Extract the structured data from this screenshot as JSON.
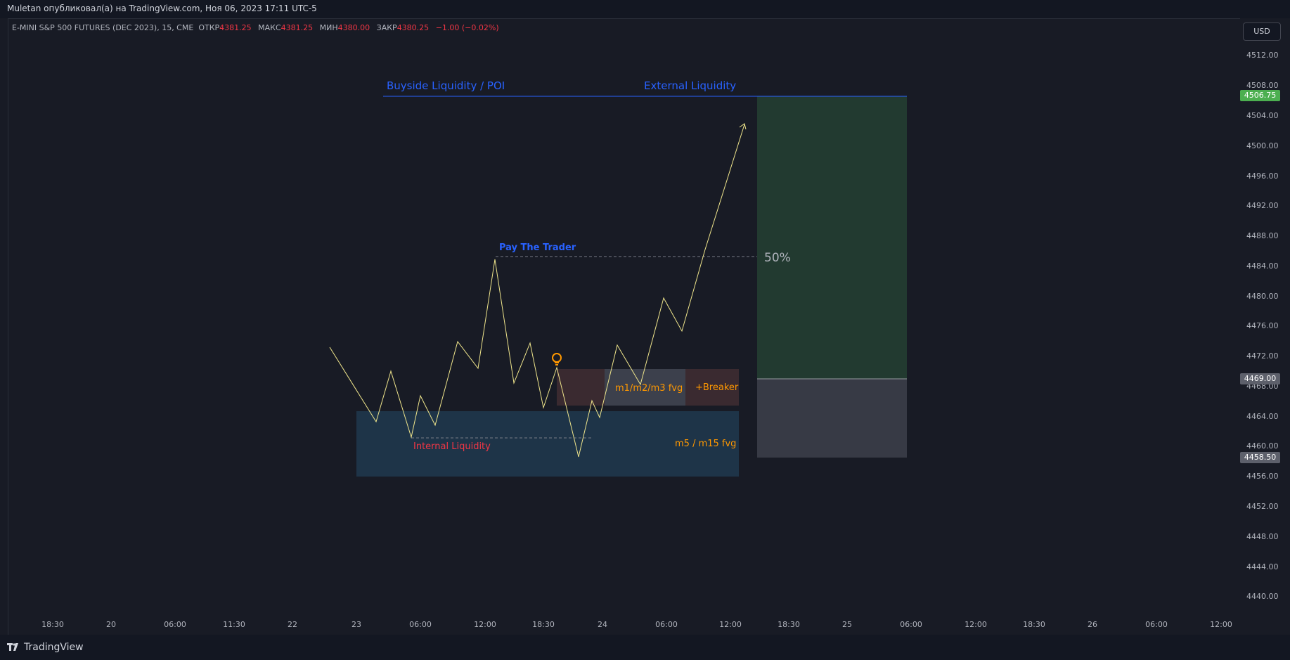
{
  "header": {
    "published": "Muletan опубликовал(а) на TradingView.com, Ноя 06, 2023 17:11 UTC-5"
  },
  "symbol": {
    "name": "E-MINI S&P 500 FUTURES (DEC 2023), 15, CME",
    "open_label": "ОТКР",
    "open_value": "4381.25",
    "high_label": "МАКС",
    "high_value": "4381.25",
    "low_label": "МИН",
    "low_value": "4380.00",
    "close_label": "ЗАКР",
    "close_value": "4380.25",
    "change": "−1.00 (−0.02%)"
  },
  "currency_button": "USD",
  "price_axis": {
    "labels": [
      "4512.00",
      "4508.00",
      "4504.00",
      "4500.00",
      "4496.00",
      "4492.00",
      "4488.00",
      "4484.00",
      "4480.00",
      "4476.00",
      "4472.00",
      "4468.00",
      "4464.00",
      "4460.00",
      "4456.00",
      "4452.00",
      "4448.00",
      "4444.00",
      "4440.00"
    ],
    "tag_top": "4506.75",
    "tag_mid": "4469.00",
    "tag_low": "4458.50"
  },
  "time_axis": {
    "labels": [
      "18:30",
      "20",
      "06:00",
      "11:30",
      "22",
      "23",
      "06:00",
      "12:00",
      "18:30",
      "24",
      "06:00",
      "12:00",
      "18:30",
      "25",
      "06:00",
      "12:00",
      "18:30",
      "26",
      "06:00",
      "12:00"
    ]
  },
  "annotations": {
    "buyside": "Buyside Liquidity / POI",
    "external": "External Liquidity",
    "pay_trader": "Pay The Trader",
    "fifty": "50%",
    "fvg_small": "m1/m2/m3 fvg",
    "breaker": "+Breaker",
    "fvg_large": "m5 / m15 fvg",
    "internal": "Internal Liquidity"
  },
  "colors": {
    "background": "#181b25",
    "line": "#f0e68c",
    "blue_label": "#2962ff",
    "orange_label": "#ff9800",
    "red_label": "#f23645",
    "profit_zone": "#223a30",
    "loss_zone": "#373a45",
    "fvg_zone": "#1e3448"
  },
  "footer": {
    "brand": "TradingView"
  },
  "icons": {
    "lightbulb": "lightbulb-icon",
    "logo": "tradingview-logo-icon"
  }
}
